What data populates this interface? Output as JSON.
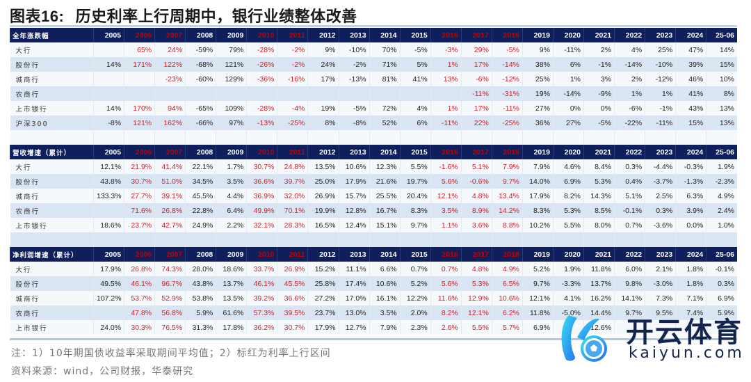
{
  "title": {
    "prefix": "图表",
    "number": "16:",
    "text": "历史利率上行周期中，银行业绩整体改善"
  },
  "columns": [
    "2005",
    "2006",
    "2007",
    "2008",
    "2009",
    "2010",
    "2011",
    "2012",
    "2013",
    "2014",
    "2015",
    "2016",
    "2017",
    "2018",
    "2019",
    "2020",
    "2021",
    "2022",
    "2023",
    "2024",
    "25-06"
  ],
  "red_columns": [
    "2006",
    "2007",
    "2010",
    "2011",
    "2016",
    "2017",
    "2018"
  ],
  "colors": {
    "header_bg": "#0f1f5c",
    "header_text": "#ffffff",
    "highlight_red": "#d0202a",
    "row_light": "#f6f9fc",
    "row_dark": "#d9e5f2"
  },
  "sections": [
    {
      "header": "全年涨跌幅",
      "rows": [
        {
          "label": "大行",
          "values": [
            "",
            "65%",
            "24%",
            "-59%",
            "79%",
            "-28%",
            "-2%",
            "9%",
            "-10%",
            "70%",
            "-5%",
            "-3%",
            "29%",
            "-5%",
            "9%",
            "-11%",
            "2%",
            "4%",
            "25%",
            "47%",
            "14%"
          ]
        },
        {
          "label": "股份行",
          "values": [
            "14%",
            "171%",
            "122%",
            "-68%",
            "121%",
            "-26%",
            "-2%",
            "24%",
            "-2%",
            "71%",
            "5%",
            "1%",
            "17%",
            "-14%",
            "38%",
            "6%",
            "-1%",
            "-14%",
            "-10%",
            "39%",
            "15%"
          ]
        },
        {
          "label": "城商行",
          "values": [
            "",
            "",
            "-23%",
            "-60%",
            "129%",
            "-36%",
            "-16%",
            "17%",
            "-13%",
            "81%",
            "41%",
            "13%",
            "-6%",
            "-12%",
            "25%",
            "1%",
            "3%",
            "2%",
            "-12%",
            "46%",
            "10%"
          ]
        },
        {
          "label": "农商行",
          "values": [
            "",
            "",
            "",
            "",
            "",
            "",
            "",
            "",
            "",
            "",
            "",
            "",
            "-11%",
            "-31%",
            "19%",
            "-14%",
            "-9%",
            "1%",
            "1%",
            "41%",
            "8%"
          ]
        },
        {
          "label": "上市银行",
          "values": [
            "14%",
            "170%",
            "94%",
            "-65%",
            "109%",
            "-28%",
            "-4%",
            "19%",
            "-5%",
            "72%",
            "4%",
            "1%",
            "17%",
            "-11%",
            "27%",
            "0%",
            "0%",
            "-6%",
            "-1%",
            "43%",
            "13%"
          ]
        },
        {
          "label": "沪深300",
          "values": [
            "-8%",
            "121%",
            "162%",
            "-66%",
            "97%",
            "-13%",
            "-25%",
            "8%",
            "-8%",
            "52%",
            "6%",
            "-11%",
            "22%",
            "-25%",
            "36%",
            "27%",
            "-5%",
            "-22%",
            "-11%",
            "15%",
            "13%"
          ]
        }
      ]
    },
    {
      "header": "营收增速（累计）",
      "rows": [
        {
          "label": "大行",
          "values": [
            "12.1%",
            "21.9%",
            "41.4%",
            "22.1%",
            "1.7%",
            "30.7%",
            "24.8%",
            "13.5%",
            "10.6%",
            "12.3%",
            "5.5%",
            "-1.6%",
            "5.1%",
            "7.9%",
            "7.9%",
            "4.6%",
            "8.4%",
            "0.3%",
            "-4.4%",
            "-0.3%",
            "1.9%"
          ]
        },
        {
          "label": "股份行",
          "values": [
            "43.8%",
            "30.7%",
            "51.0%",
            "34.5%",
            "3.5%",
            "36.6%",
            "39.7%",
            "25.0%",
            "17.9%",
            "21.6%",
            "19.7%",
            "5.6%",
            "-0.6%",
            "9.7%",
            "14.0%",
            "6.9%",
            "5.3%",
            "0.4%",
            "-3.7%",
            "-1.3%",
            "-2.3%"
          ]
        },
        {
          "label": "城商行",
          "values": [
            "133.3%",
            "27.7%",
            "39.1%",
            "45.5%",
            "4.4%",
            "36.9%",
            "32.0%",
            "26.9%",
            "15.7%",
            "25.5%",
            "20.4%",
            "12.1%",
            "4.8%",
            "13.4%",
            "17.9%",
            "8.2%",
            "14.3%",
            "5.1%",
            "2.5%",
            "6.3%",
            "4.9%"
          ]
        },
        {
          "label": "农商行",
          "values": [
            "",
            "71.6%",
            "26.8%",
            "22.8%",
            "6.4%",
            "49.9%",
            "70.1%",
            "19.9%",
            "12.8%",
            "16.7%",
            "8.3%",
            "3.5%",
            "8.9%",
            "14.2%",
            "8.3%",
            "5.3%",
            "8.5%",
            "-0.1%",
            "0.3%",
            "3.9%",
            "2.4%"
          ]
        },
        {
          "label": "上市银行",
          "values": [
            "18.6%",
            "23.7%",
            "42.7%",
            "24.9%",
            "2.2%",
            "32.1%",
            "28.3%",
            "16.5%",
            "12.4%",
            "15.1%",
            "9.7%",
            "1.1%",
            "3.6%",
            "8.8%",
            "10.2%",
            "5.5%",
            "8.0%",
            "0.7%",
            "-3.6%",
            "0.0%",
            "1.0%"
          ]
        }
      ]
    },
    {
      "header": "净利润增速（累计）",
      "rows": [
        {
          "label": "大行",
          "values": [
            "17.9%",
            "26.8%",
            "74.3%",
            "28.0%",
            "18.6%",
            "33.7%",
            "26.9%",
            "15.2%",
            "11.1%",
            "6.6%",
            "0.7%",
            "0.7%",
            "4.8%",
            "4.9%",
            "5.2%",
            "1.9%",
            "11.8%",
            "6.0%",
            "2.1%",
            "1.8%",
            "-0.1%"
          ]
        },
        {
          "label": "股份行",
          "values": [
            "49.5%",
            "46.1%",
            "96.7%",
            "43.8%",
            "13.7%",
            "46.1%",
            "45.5%",
            "25.8%",
            "17.4%",
            "10.6%",
            "5.2%",
            "5.6%",
            "5.3%",
            "6.5%",
            "9.7%",
            "-3.3%",
            "13.7%",
            "9.8%",
            "-3.0%",
            "1.8%",
            "0.3%"
          ]
        },
        {
          "label": "城商行",
          "values": [
            "107.2%",
            "53.7%",
            "52.9%",
            "53.8%",
            "13.5%",
            "39.2%",
            "36.6%",
            "27.2%",
            "17.0%",
            "16.1%",
            "12.2%",
            "11.6%",
            "12.9%",
            "10.6%",
            "12.1%",
            "4.1%",
            "16.2%",
            "14.1%",
            "7.3%",
            "7.1%",
            "6.9%"
          ]
        },
        {
          "label": "农商行",
          "values": [
            "",
            "47.8%",
            "56.8%",
            "5.9%",
            "61.6%",
            "57.3%",
            "39.5%",
            "23.7%",
            "13.0%",
            "3.5%",
            "2.0%",
            "8.2%",
            "12.1%",
            "6.2%",
            "11.8%",
            "-5.0%",
            "14.4%",
            "9.7%",
            "9.5%",
            "7.4%",
            "5.9%"
          ]
        },
        {
          "label": "上市银行",
          "values": [
            "24.0%",
            "30.3%",
            "76.5%",
            "31.3%",
            "17.8%",
            "36.2%",
            "30.7%",
            "17.9%",
            "12.7%",
            "7.9%",
            "2.3%",
            "2.6%",
            "5.5%",
            "5.7%",
            "6.9%",
            "",
            "12.6%",
            "",
            "",
            "",
            ""
          ]
        }
      ]
    }
  ],
  "notes": {
    "note1": "注：1）10年期国债收益率采取期间平均值；2）标红为利率上行区间",
    "source": "资料来源：wind，公司财报，华泰研究"
  },
  "watermark": {
    "cn": "开云体育",
    "en": "kaiyun.com"
  }
}
